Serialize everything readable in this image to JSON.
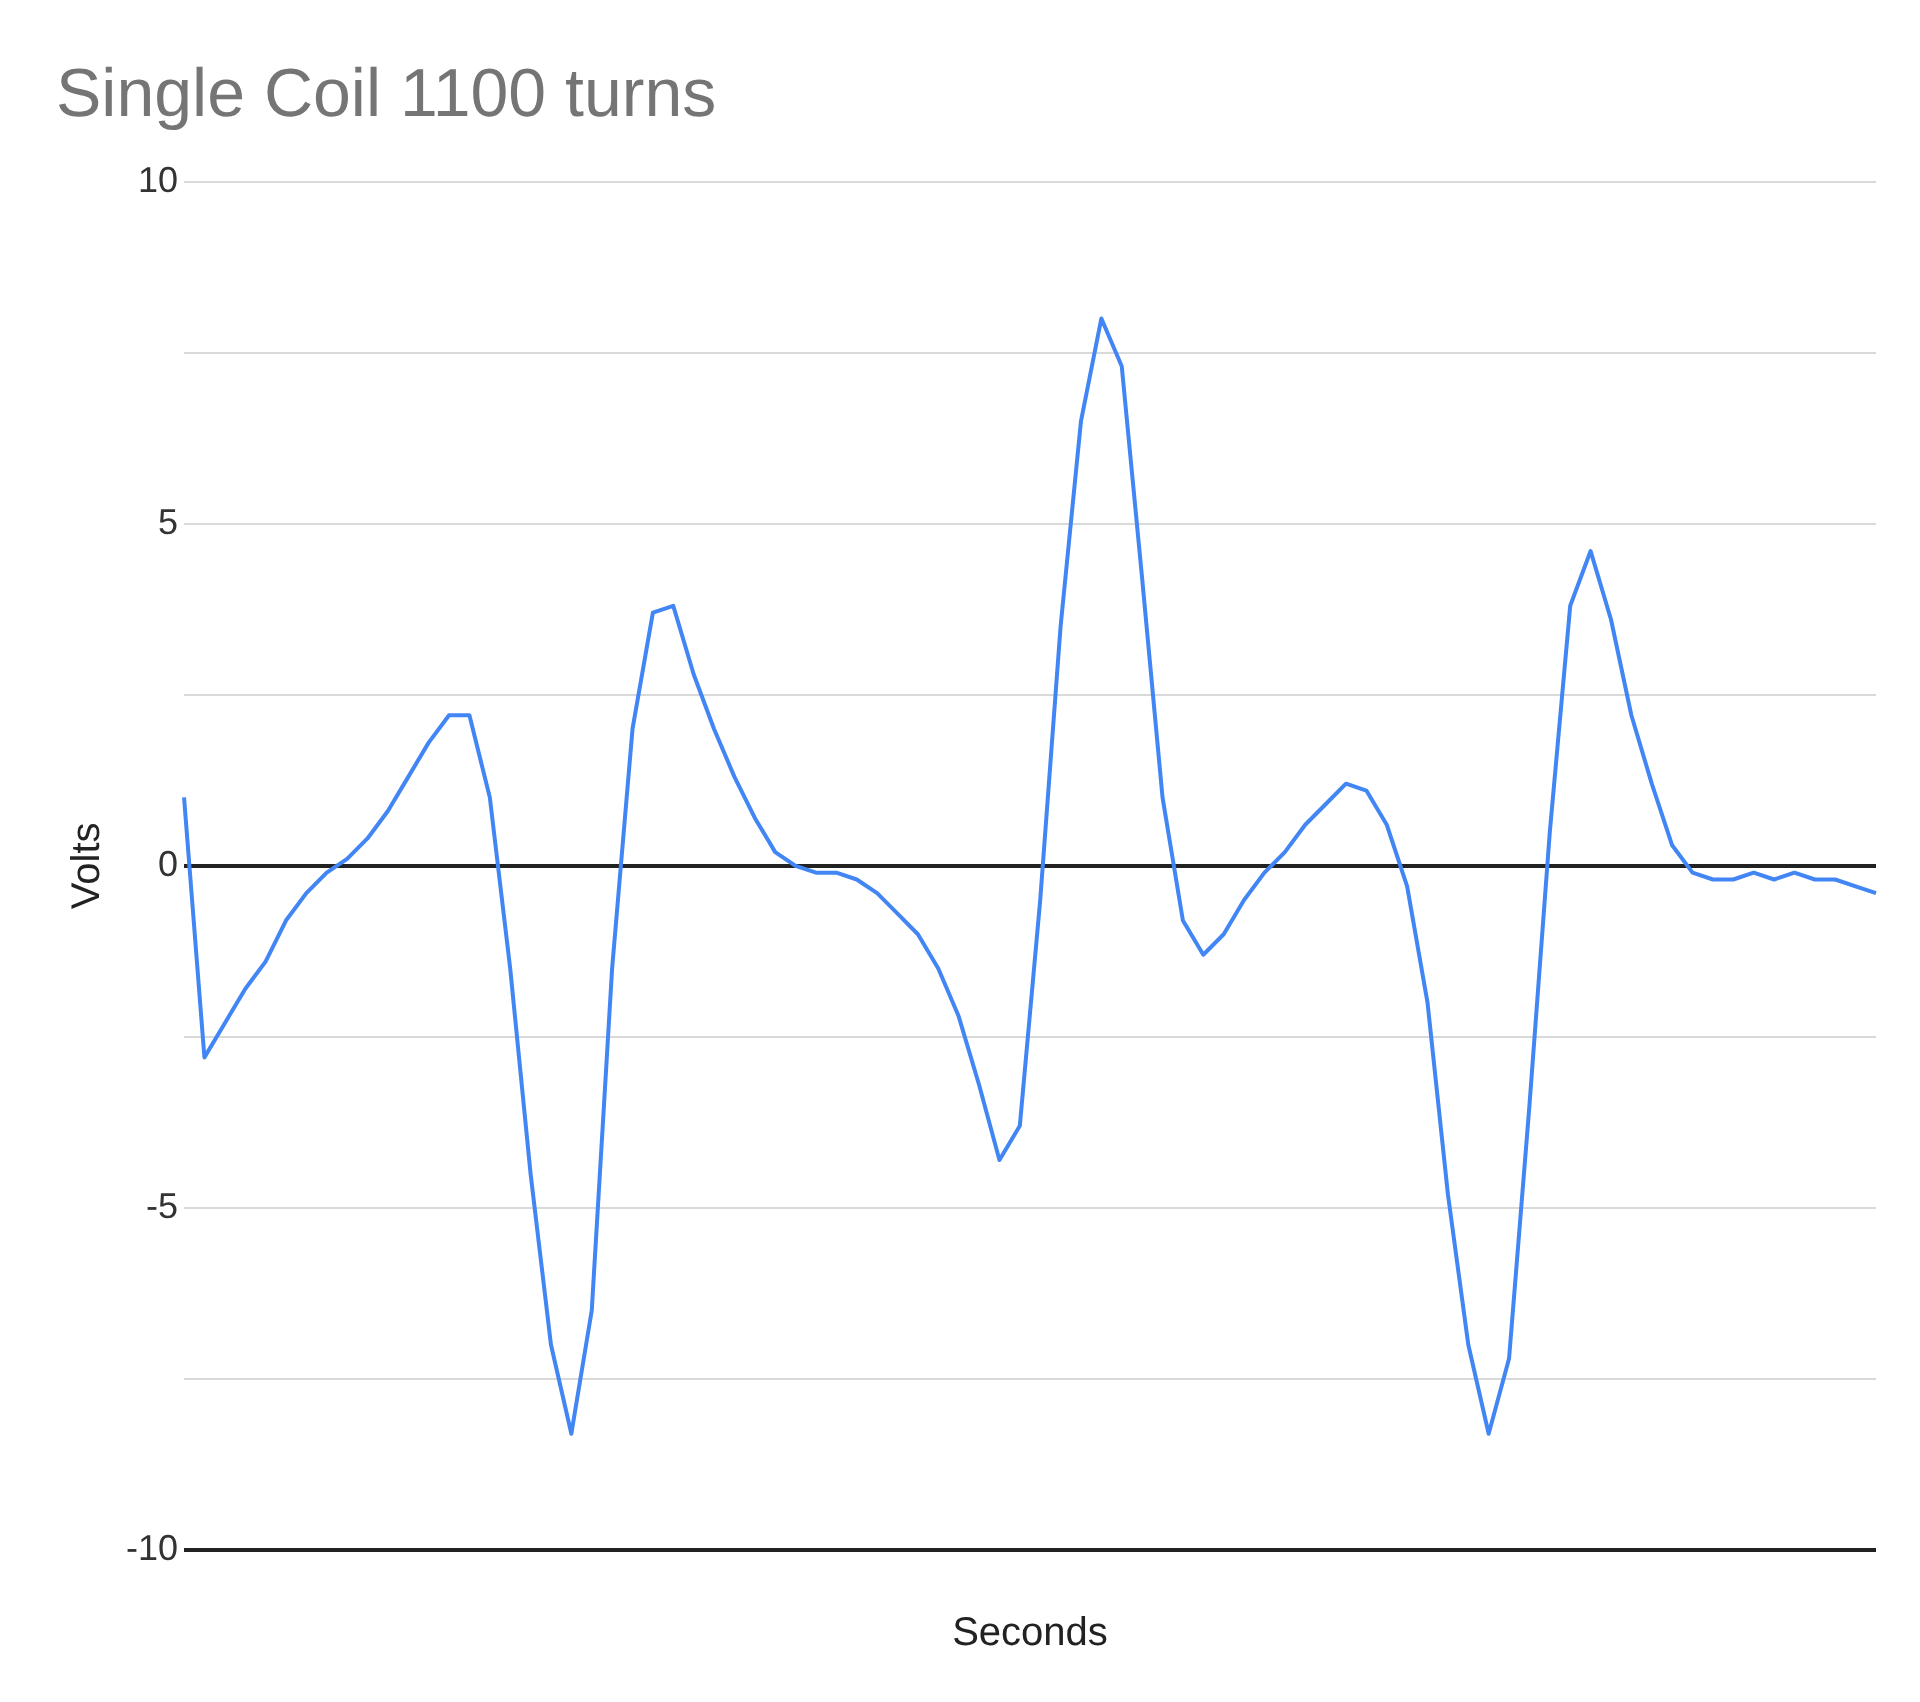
{
  "chart_data": {
    "type": "line",
    "title": "Single Coil 1100 turns",
    "xlabel": "Seconds",
    "ylabel": "Volts",
    "categories": [
      null,
      null,
      null,
      null,
      null,
      null,
      null,
      null,
      null,
      null,
      null,
      null,
      null,
      null,
      null,
      null,
      null,
      null,
      null,
      null,
      null,
      null,
      null,
      null,
      null,
      null,
      null,
      null,
      null,
      null,
      null,
      null,
      null,
      null,
      null,
      null,
      null,
      null,
      null,
      null,
      null,
      null,
      null,
      null,
      null,
      null,
      null,
      null,
      null,
      null,
      null,
      null,
      null,
      null,
      null,
      null,
      null,
      null,
      null,
      null,
      null,
      null,
      null,
      null,
      null,
      null,
      null,
      null,
      null,
      null,
      null,
      null,
      null,
      null,
      null,
      null,
      null,
      null,
      null,
      null,
      null,
      null,
      null,
      null
    ],
    "series": [
      {
        "color": "#4285f4",
        "values": [
          1,
          -2.8,
          -2.3,
          -1.8,
          -1.4,
          -0.8,
          -0.4,
          -0.1,
          0.1,
          0.4,
          0.8,
          1.3,
          1.8,
          2.2,
          2.2,
          1,
          -1.5,
          -4.5,
          -7,
          -8.3,
          -6.5,
          -1.5,
          2,
          3.7,
          3.8,
          2.8,
          2,
          1.3,
          0.7,
          0.2,
          0,
          -0.1,
          -0.1,
          -0.2,
          -0.4,
          -0.7,
          -1,
          -1.5,
          -2.2,
          -3.2,
          -4.3,
          -3.8,
          -0.5,
          3.5,
          6.5,
          8,
          7.3,
          4.2,
          1,
          -0.8,
          -1.3,
          -1,
          -0.5,
          -0.1,
          0.2,
          0.6,
          0.9,
          1.2,
          1.1,
          0.6,
          -0.3,
          -2,
          -4.8,
          -7,
          -8.3,
          -7.2,
          -3.5,
          0.5,
          3.8,
          4.6,
          3.6,
          2.2,
          1.2,
          0.3,
          -0.1,
          -0.2,
          -0.2,
          -0.1,
          -0.2,
          -0.1,
          -0.2,
          -0.2,
          -0.3,
          -0.4
        ]
      }
    ],
    "ylim": [
      -10,
      10
    ],
    "yticks": [
      -10,
      {
        "value": -7.5,
        "label": null
      },
      -5,
      {
        "value": -2.5,
        "label": null
      },
      0,
      {
        "value": 2.5,
        "label": null
      },
      5,
      {
        "value": 7.5,
        "label": null
      },
      10
    ],
    "grid": "y",
    "legend": false,
    "marker": "none",
    "line_style": "solid",
    "tick_labels": "y"
  }
}
